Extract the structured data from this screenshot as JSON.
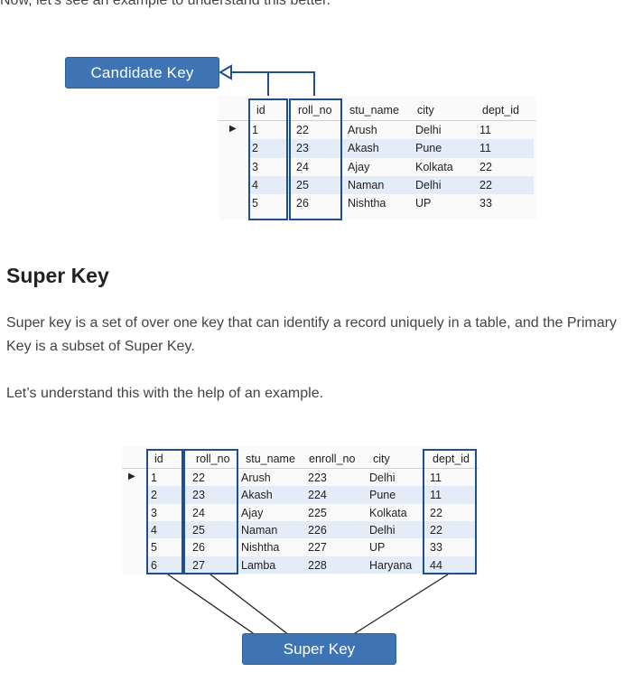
{
  "cut_text": "Now, let's see an example to understand this better.",
  "candidate_figure": {
    "badge_label": "Candidate Key",
    "headers": [
      "id",
      "roll_no",
      "stu_name",
      "city",
      "dept_id"
    ],
    "rows": [
      [
        "1",
        "22",
        "Arush",
        "Delhi",
        "11"
      ],
      [
        "2",
        "23",
        "Akash",
        "Pune",
        "11"
      ],
      [
        "3",
        "24",
        "Ajay",
        "Kolkata",
        "22"
      ],
      [
        "4",
        "25",
        "Naman",
        "Delhi",
        "22"
      ],
      [
        "5",
        "26",
        "Nishtha",
        "UP",
        "33"
      ]
    ],
    "row_marker": "▶"
  },
  "super_key_section": {
    "heading": "Super Key",
    "paragraph_1": "Super key is a set of over one key that can identify a record uniquely in a table, and the Primary Key is a subset of Super Key.",
    "paragraph_2": "Let’s understand this with the help of an example."
  },
  "super_figure": {
    "badge_label": "Super Key",
    "headers": [
      "id",
      "roll_no",
      "stu_name",
      "enroll_no",
      "city",
      "dept_id"
    ],
    "rows": [
      [
        "1",
        "22",
        "Arush",
        "223",
        "Delhi",
        "11"
      ],
      [
        "2",
        "23",
        "Akash",
        "224",
        "Pune",
        "11"
      ],
      [
        "3",
        "24",
        "Ajay",
        "225",
        "Kolkata",
        "22"
      ],
      [
        "4",
        "25",
        "Naman",
        "226",
        "Delhi",
        "22"
      ],
      [
        "5",
        "26",
        "Nishtha",
        "227",
        "UP",
        "33"
      ],
      [
        "6",
        "27",
        "Lamba",
        "228",
        "Haryana",
        "44"
      ]
    ],
    "row_marker": "▶"
  },
  "colors": {
    "badge_blue": "#3e74b4",
    "box_blue": "#1e4f8f",
    "row_highlight": "#e4ecf7"
  }
}
